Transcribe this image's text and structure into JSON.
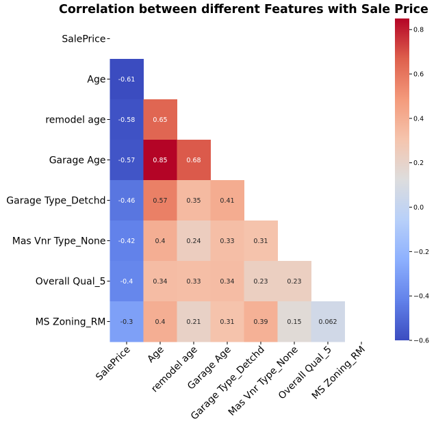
{
  "chart_data": {
    "type": "heatmap",
    "title": "Correlation between different Features with Sale Price",
    "labels": [
      "SalePrice",
      "Age",
      "remodel age",
      "Garage Age",
      "Garage Type_Detchd",
      "Mas Vnr Type_None",
      "Overall Qual_5",
      "MS Zoning_RM"
    ],
    "mask": "upper-triangle including diagonal",
    "colormap": "coolwarm",
    "vmin": -0.6,
    "vmax": 0.85,
    "colorbar_ticks": [
      "0.8",
      "0.6",
      "0.4",
      "0.2",
      "0.0",
      "−0.2",
      "−0.4",
      "−0.6"
    ],
    "colorbar_tick_values": [
      0.8,
      0.6,
      0.4,
      0.2,
      0.0,
      -0.2,
      -0.4,
      -0.6
    ],
    "cells": [
      {
        "row": 1,
        "col": 0,
        "value": -0.61,
        "label": "-0.61"
      },
      {
        "row": 2,
        "col": 0,
        "value": -0.58,
        "label": "-0.58"
      },
      {
        "row": 2,
        "col": 1,
        "value": 0.65,
        "label": "0.65"
      },
      {
        "row": 3,
        "col": 0,
        "value": -0.57,
        "label": "-0.57"
      },
      {
        "row": 3,
        "col": 1,
        "value": 0.85,
        "label": "0.85"
      },
      {
        "row": 3,
        "col": 2,
        "value": 0.68,
        "label": "0.68"
      },
      {
        "row": 4,
        "col": 0,
        "value": -0.46,
        "label": "-0.46"
      },
      {
        "row": 4,
        "col": 1,
        "value": 0.57,
        "label": "0.57"
      },
      {
        "row": 4,
        "col": 2,
        "value": 0.35,
        "label": "0.35"
      },
      {
        "row": 4,
        "col": 3,
        "value": 0.41,
        "label": "0.41"
      },
      {
        "row": 5,
        "col": 0,
        "value": -0.42,
        "label": "-0.42"
      },
      {
        "row": 5,
        "col": 1,
        "value": 0.4,
        "label": "0.4"
      },
      {
        "row": 5,
        "col": 2,
        "value": 0.24,
        "label": "0.24"
      },
      {
        "row": 5,
        "col": 3,
        "value": 0.33,
        "label": "0.33"
      },
      {
        "row": 5,
        "col": 4,
        "value": 0.31,
        "label": "0.31"
      },
      {
        "row": 6,
        "col": 0,
        "value": -0.4,
        "label": "-0.4"
      },
      {
        "row": 6,
        "col": 1,
        "value": 0.34,
        "label": "0.34"
      },
      {
        "row": 6,
        "col": 2,
        "value": 0.33,
        "label": "0.33"
      },
      {
        "row": 6,
        "col": 3,
        "value": 0.34,
        "label": "0.34"
      },
      {
        "row": 6,
        "col": 4,
        "value": 0.23,
        "label": "0.23"
      },
      {
        "row": 6,
        "col": 5,
        "value": 0.23,
        "label": "0.23"
      },
      {
        "row": 7,
        "col": 0,
        "value": -0.3,
        "label": "-0.3"
      },
      {
        "row": 7,
        "col": 1,
        "value": 0.4,
        "label": "0.4"
      },
      {
        "row": 7,
        "col": 2,
        "value": 0.21,
        "label": "0.21"
      },
      {
        "row": 7,
        "col": 3,
        "value": 0.31,
        "label": "0.31"
      },
      {
        "row": 7,
        "col": 4,
        "value": 0.39,
        "label": "0.39"
      },
      {
        "row": 7,
        "col": 5,
        "value": 0.15,
        "label": "0.15"
      },
      {
        "row": 7,
        "col": 6,
        "value": 0.062,
        "label": "0.062"
      }
    ]
  }
}
